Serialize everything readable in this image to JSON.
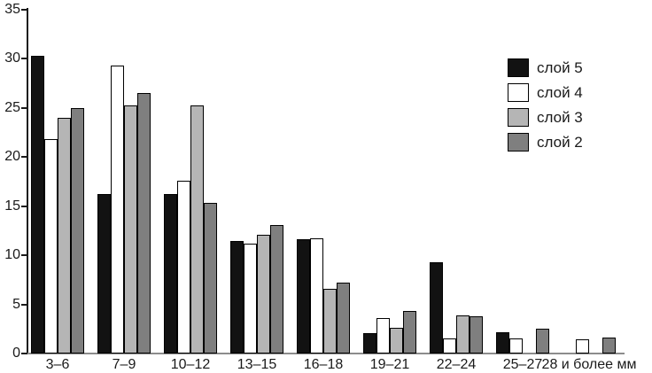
{
  "chart_data": {
    "type": "bar",
    "title": "",
    "xlabel": "",
    "ylabel": "",
    "categories": [
      "3–6",
      "7–9",
      "10–12",
      "13–15",
      "16–18",
      "19–21",
      "22–24",
      "25–27",
      "28 и более мм"
    ],
    "series": [
      {
        "name": "слой 5",
        "color": "#121212",
        "values": [
          30.3,
          16.2,
          16.2,
          11.5,
          11.6,
          2.1,
          9.3,
          2.2,
          0
        ]
      },
      {
        "name": "слой 4",
        "color": "#ffffff",
        "values": [
          21.8,
          29.3,
          17.6,
          11.2,
          11.7,
          3.6,
          1.5,
          1.5,
          1.4
        ]
      },
      {
        "name": "слой 3",
        "color": "#b5b5b5",
        "values": [
          24.0,
          25.3,
          25.3,
          12.1,
          6.6,
          2.6,
          3.9,
          0,
          0
        ]
      },
      {
        "name": "слой 2",
        "color": "#7f7f7f",
        "values": [
          25.0,
          26.5,
          15.3,
          13.1,
          7.2,
          4.3,
          3.8,
          2.5,
          1.6
        ]
      }
    ],
    "ylim": [
      0,
      35
    ],
    "yticks": [
      0,
      5,
      10,
      15,
      20,
      25,
      30,
      35
    ],
    "grid": false,
    "legend_position": "top-right",
    "axis_colors": {
      "y_axis": "#1a1a1a",
      "x_axis": "#8c8c8c"
    }
  }
}
